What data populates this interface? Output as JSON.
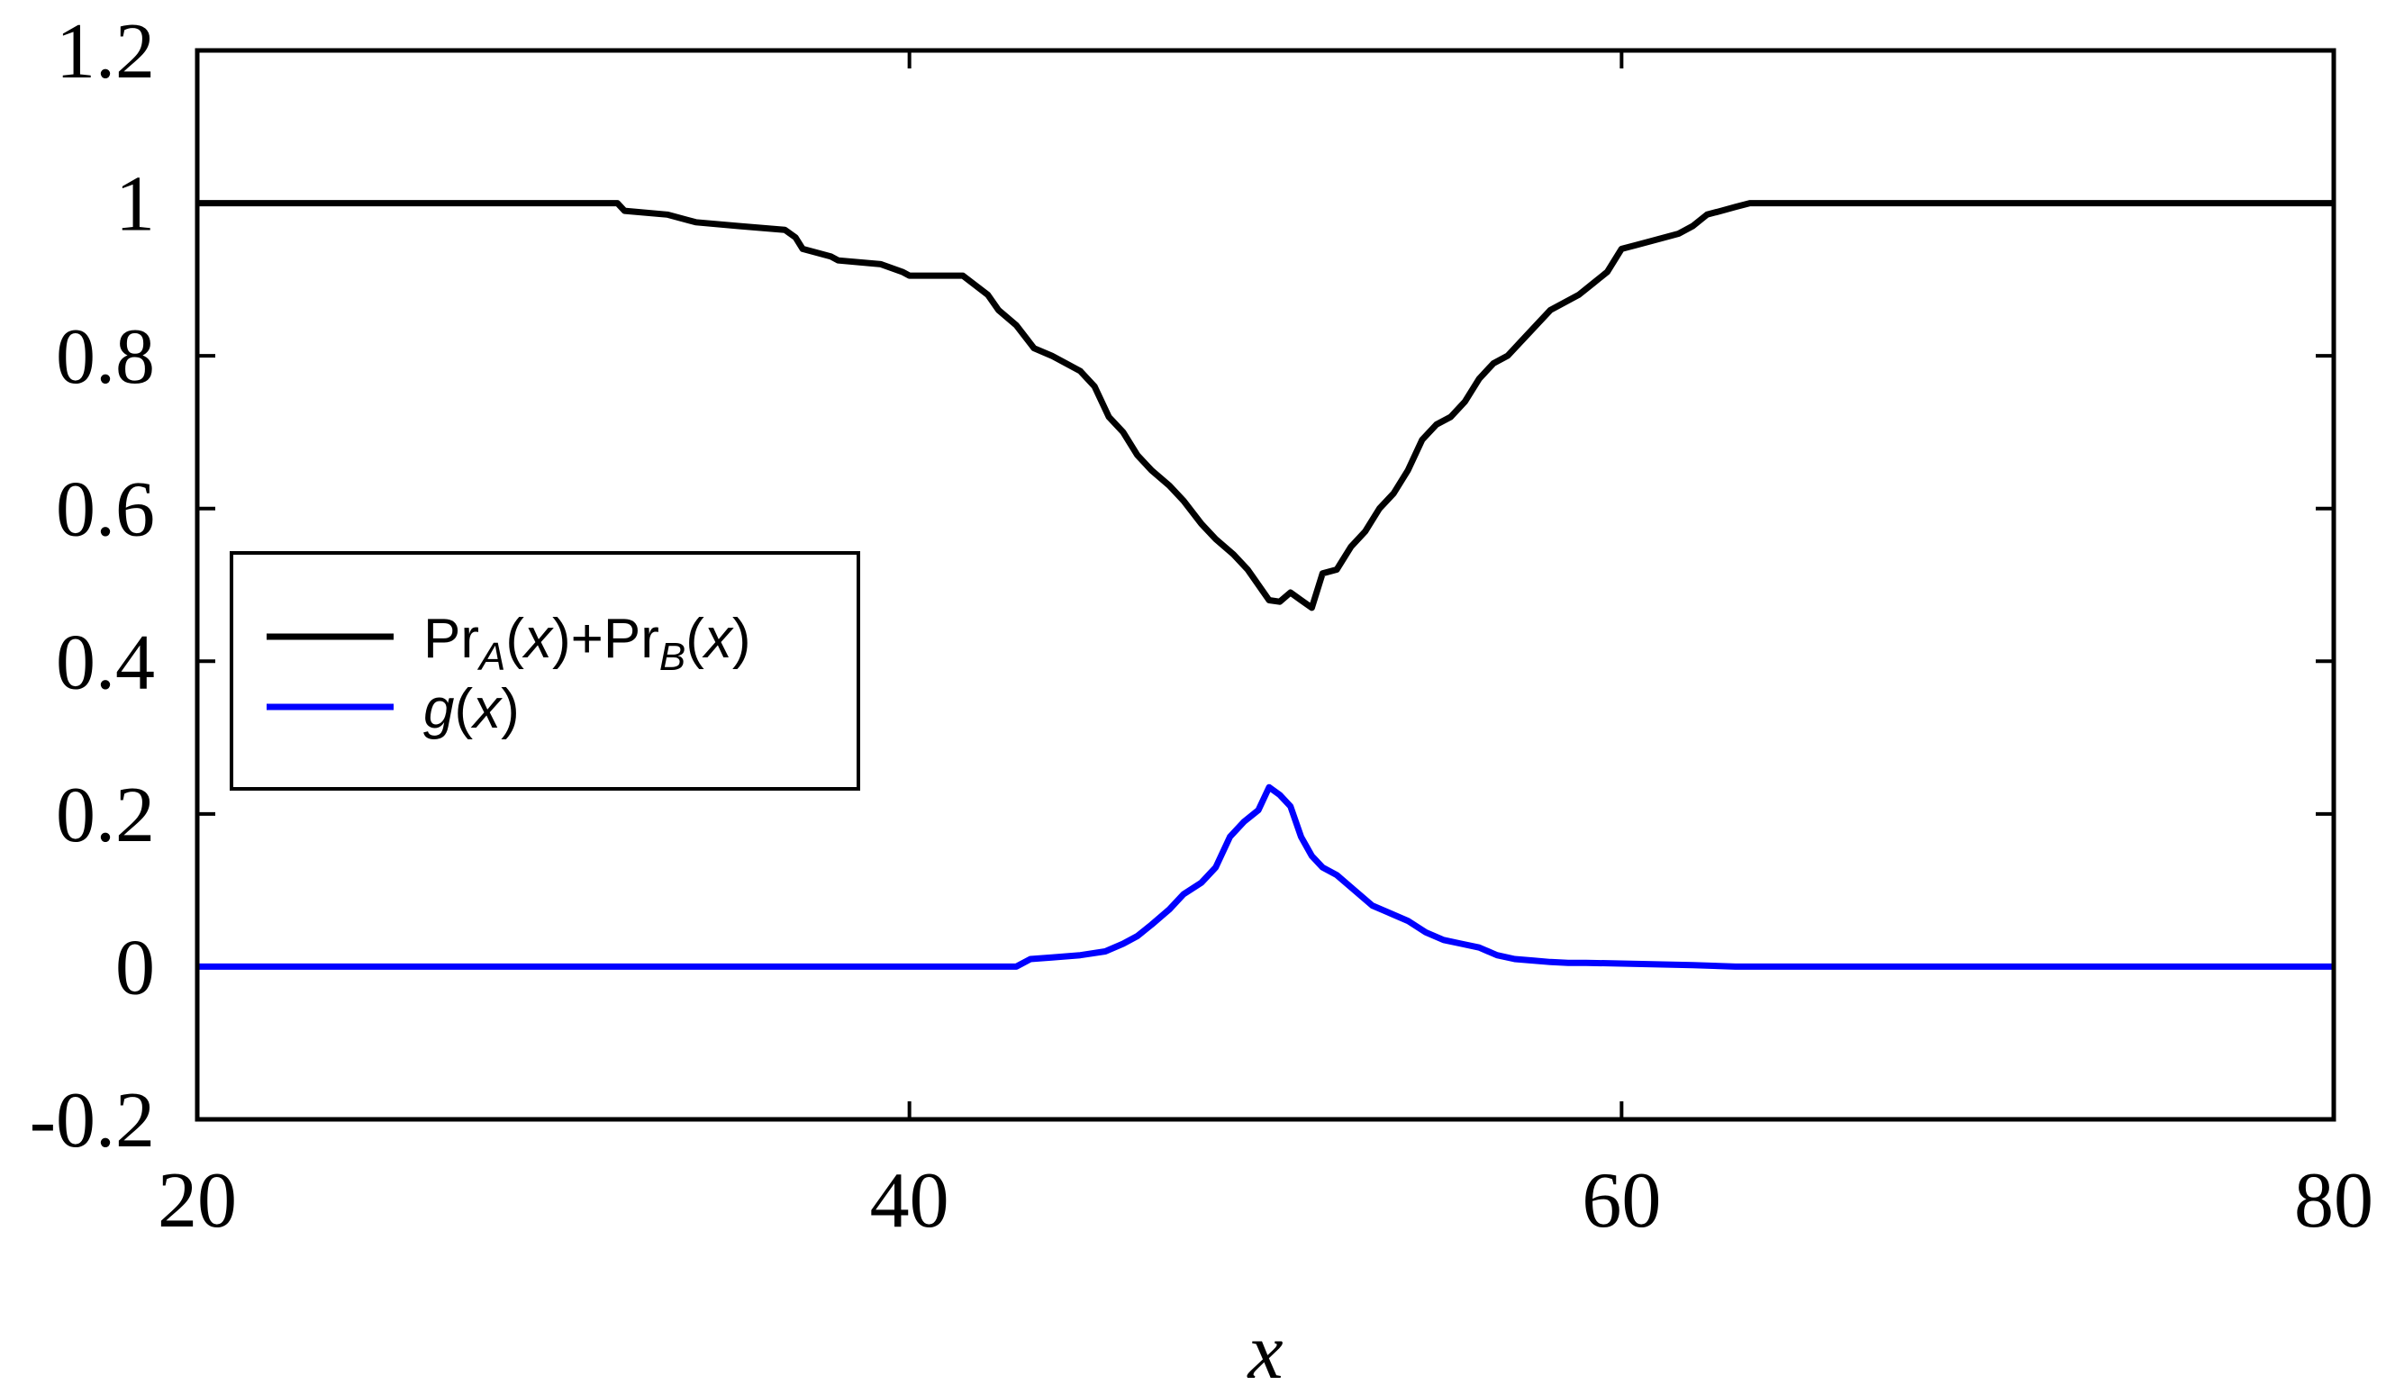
{
  "chart_data": {
    "type": "line",
    "xlabel": "x",
    "ylabel": "",
    "xlim": [
      20,
      80
    ],
    "ylim": [
      -0.2,
      1.2
    ],
    "xticks": [
      "20",
      "40",
      "60",
      "80"
    ],
    "yticks": [
      "-0.2",
      "0",
      "0.2",
      "0.4",
      "0.6",
      "0.8",
      "1",
      "1.2"
    ],
    "grid": false,
    "legend_position": "left",
    "legend": {
      "pr": {
        "a": "Pr",
        "b": "A",
        "c": "(",
        "d": "x",
        "e": ")+Pr",
        "f": "B",
        "g": "(",
        "h": "x",
        "i": ")"
      },
      "g": {
        "a": "g",
        "b": "(",
        "c": "x",
        "d": ")"
      }
    },
    "series": [
      {
        "color": "#000000",
        "x": [
          20,
          31.8,
          32,
          33.2,
          34,
          35.2,
          36.5,
          36.8,
          37,
          37.8,
          38,
          39.2,
          39.8,
          40,
          41.5,
          42.2,
          42.5,
          43,
          43.5,
          44,
          44.8,
          45.2,
          45.6,
          46,
          46.4,
          46.8,
          47.3,
          47.7,
          48.2,
          48.6,
          49.1,
          49.5,
          49.8,
          50.1,
          50.4,
          50.7,
          51,
          51.3,
          51.6,
          52,
          52.4,
          52.8,
          53.2,
          53.6,
          54,
          54.4,
          54.8,
          55.2,
          55.6,
          56,
          56.4,
          56.8,
          57.2,
          57.6,
          58,
          58.4,
          58.8,
          59.2,
          59.6,
          60,
          60.4,
          60.8,
          61.2,
          61.6,
          62,
          62.4,
          62.8,
          63.2,
          63.6,
          80
        ],
        "y": [
          1.0,
          1.0,
          0.99,
          0.985,
          0.975,
          0.97,
          0.965,
          0.955,
          0.94,
          0.93,
          0.925,
          0.92,
          0.91,
          0.905,
          0.905,
          0.88,
          0.86,
          0.84,
          0.81,
          0.8,
          0.78,
          0.76,
          0.72,
          0.7,
          0.67,
          0.65,
          0.63,
          0.61,
          0.58,
          0.56,
          0.54,
          0.52,
          0.5,
          0.48,
          0.478,
          0.49,
          0.48,
          0.47,
          0.515,
          0.52,
          0.55,
          0.57,
          0.6,
          0.62,
          0.65,
          0.69,
          0.71,
          0.72,
          0.74,
          0.77,
          0.79,
          0.8,
          0.82,
          0.84,
          0.86,
          0.87,
          0.88,
          0.895,
          0.91,
          0.94,
          0.945,
          0.95,
          0.955,
          0.96,
          0.97,
          0.985,
          0.99,
          0.995,
          1.0,
          1.0
        ]
      },
      {
        "color": "#0000ff",
        "x": [
          20,
          43.0,
          43.4,
          44.0,
          44.8,
          45.5,
          46,
          46.4,
          46.8,
          47.3,
          47.7,
          48.2,
          48.6,
          49.0,
          49.4,
          49.8,
          50.1,
          50.4,
          50.7,
          51.0,
          51.3,
          51.6,
          52,
          52.5,
          53,
          53.5,
          54,
          54.5,
          55,
          55.5,
          56,
          56.5,
          57,
          57.5,
          58,
          58.5,
          59,
          60,
          61,
          62,
          63.2,
          80
        ],
        "y": [
          0.0,
          0.0,
          0.01,
          0.012,
          0.015,
          0.02,
          0.03,
          0.04,
          0.055,
          0.075,
          0.095,
          0.11,
          0.13,
          0.17,
          0.19,
          0.205,
          0.235,
          0.225,
          0.21,
          0.17,
          0.145,
          0.13,
          0.12,
          0.1,
          0.08,
          0.07,
          0.06,
          0.045,
          0.035,
          0.03,
          0.025,
          0.015,
          0.01,
          0.008,
          0.006,
          0.005,
          0.005,
          0.004,
          0.003,
          0.002,
          0.0,
          0.0
        ]
      }
    ]
  }
}
